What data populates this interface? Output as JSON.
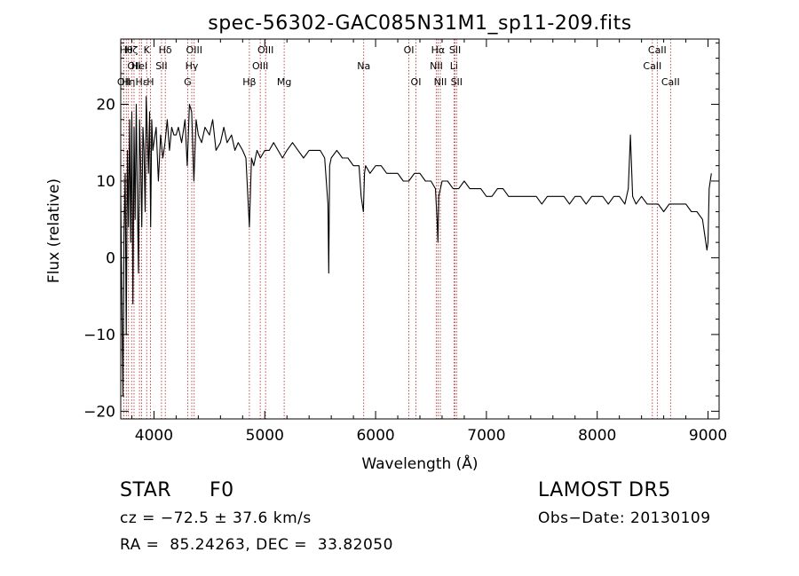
{
  "chart_data": {
    "type": "line",
    "title": "spec-56302-GAC085N31M1_sp11-209.fits",
    "xlabel": "Wavelength (Å)",
    "ylabel": "Flux (relative)",
    "xlim": [
      3700,
      9100
    ],
    "ylim": [
      -21,
      28.5
    ],
    "x_ticks": [
      4000,
      5000,
      6000,
      7000,
      8000,
      9000
    ],
    "x_tick_labels": [
      "4000",
      "5000",
      "6000",
      "7000",
      "8000",
      "9000"
    ],
    "y_ticks": [
      -20,
      -10,
      0,
      10,
      20
    ],
    "y_tick_labels": [
      "−20",
      "−10",
      "0",
      "10",
      "20"
    ],
    "grid": false,
    "series": [
      {
        "color": "#000000",
        "x": [
          3700,
          3710,
          3720,
          3730,
          3740,
          3750,
          3760,
          3770,
          3780,
          3790,
          3800,
          3810,
          3820,
          3830,
          3840,
          3850,
          3860,
          3870,
          3880,
          3890,
          3900,
          3910,
          3920,
          3930,
          3940,
          3950,
          3960,
          3970,
          3980,
          3990,
          4000,
          4020,
          4040,
          4060,
          4080,
          4100,
          4120,
          4140,
          4160,
          4180,
          4200,
          4220,
          4250,
          4280,
          4300,
          4320,
          4340,
          4360,
          4380,
          4400,
          4430,
          4460,
          4500,
          4530,
          4560,
          4600,
          4630,
          4660,
          4700,
          4730,
          4760,
          4800,
          4830,
          4861,
          4880,
          4900,
          4930,
          4960,
          5000,
          5040,
          5080,
          5120,
          5160,
          5200,
          5250,
          5300,
          5350,
          5400,
          5450,
          5500,
          5540,
          5570,
          5577,
          5585,
          5600,
          5650,
          5700,
          5750,
          5800,
          5850,
          5870,
          5890,
          5900,
          5910,
          5950,
          6000,
          6050,
          6100,
          6150,
          6200,
          6250,
          6300,
          6350,
          6400,
          6450,
          6500,
          6540,
          6555,
          6563,
          6570,
          6600,
          6650,
          6700,
          6750,
          6800,
          6850,
          6900,
          6950,
          7000,
          7050,
          7100,
          7150,
          7200,
          7250,
          7300,
          7350,
          7400,
          7450,
          7500,
          7550,
          7600,
          7650,
          7700,
          7750,
          7800,
          7850,
          7900,
          7950,
          8000,
          8050,
          8100,
          8150,
          8200,
          8250,
          8280,
          8300,
          8320,
          8350,
          8400,
          8450,
          8500,
          8550,
          8600,
          8650,
          8700,
          8750,
          8800,
          8850,
          8900,
          8950,
          8970,
          8990,
          9000,
          9010,
          9030
        ],
        "y": [
          8,
          -5,
          -18,
          3,
          11,
          -10,
          14,
          4,
          18,
          2,
          19,
          -6,
          17,
          5,
          20,
          8,
          -2,
          18,
          12,
          4,
          17,
          14,
          6,
          21,
          16,
          11,
          19,
          4,
          18,
          14,
          15,
          17,
          10,
          16,
          13,
          15,
          18,
          14,
          17,
          16,
          16,
          17,
          15,
          18,
          12,
          20,
          19,
          10,
          18,
          16,
          15,
          17,
          16,
          18,
          14,
          15,
          17,
          15,
          16,
          14,
          15,
          14,
          13,
          4,
          13,
          12,
          14,
          13,
          14,
          14,
          15,
          14,
          13,
          14,
          15,
          14,
          13,
          14,
          14,
          14,
          13,
          7,
          -2,
          12,
          13,
          14,
          13,
          13,
          12,
          12,
          8,
          6,
          11,
          12,
          11,
          12,
          12,
          11,
          11,
          11,
          10,
          10,
          11,
          11,
          10,
          10,
          9,
          5,
          2,
          8,
          10,
          10,
          9,
          9,
          10,
          9,
          9,
          9,
          8,
          8,
          9,
          9,
          8,
          8,
          8,
          8,
          8,
          8,
          7,
          8,
          8,
          8,
          8,
          7,
          8,
          8,
          7,
          8,
          8,
          8,
          7,
          8,
          8,
          7,
          9,
          16,
          8,
          7,
          8,
          7,
          7,
          7,
          6,
          7,
          7,
          7,
          7,
          6,
          6,
          5,
          3,
          1,
          2,
          9,
          11
        ]
      }
    ],
    "lines": [
      {
        "x": 3728,
        "label": "OII",
        "row": 2
      },
      {
        "x": 3750,
        "label": "Hθ",
        "row": 0
      },
      {
        "x": 3770,
        "label": "Hη",
        "row": 2
      },
      {
        "x": 3798,
        "label": "Hζ",
        "row": 0
      },
      {
        "x": 3820,
        "label": "OII",
        "row": 1
      },
      {
        "x": 3869,
        "label": "HeI",
        "row": 1
      },
      {
        "x": 3889,
        "label": "Hε",
        "row": 2
      },
      {
        "x": 3934,
        "label": "K",
        "row": 0
      },
      {
        "x": 3968,
        "label": "H",
        "row": 2
      },
      {
        "x": 4068,
        "label": "SII",
        "row": 1
      },
      {
        "x": 4102,
        "label": "Hδ",
        "row": 0
      },
      {
        "x": 4304,
        "label": "G",
        "row": 2
      },
      {
        "x": 4341,
        "label": "Hγ",
        "row": 1
      },
      {
        "x": 4363,
        "label": "OIII",
        "row": 0
      },
      {
        "x": 4861,
        "label": "Hβ",
        "row": 2
      },
      {
        "x": 4959,
        "label": "OIII",
        "row": 1
      },
      {
        "x": 5007,
        "label": "OIII",
        "row": 0
      },
      {
        "x": 5175,
        "label": "Mg",
        "row": 2
      },
      {
        "x": 5893,
        "label": "Na",
        "row": 1
      },
      {
        "x": 6300,
        "label": "OI",
        "row": 0
      },
      {
        "x": 6364,
        "label": "OI",
        "row": 2
      },
      {
        "x": 6548,
        "label": "NII",
        "row": 1
      },
      {
        "x": 6563,
        "label": "Hα",
        "row": 0
      },
      {
        "x": 6584,
        "label": "NII",
        "row": 2
      },
      {
        "x": 6707,
        "label": "Li",
        "row": 1
      },
      {
        "x": 6717,
        "label": "SII",
        "row": 0
      },
      {
        "x": 6731,
        "label": "SII",
        "row": 2
      },
      {
        "x": 8498,
        "label": "CaII",
        "row": 1
      },
      {
        "x": 8542,
        "label": "CaII",
        "row": 0
      },
      {
        "x": 8662,
        "label": "CaII",
        "row": 2
      }
    ]
  },
  "info": {
    "class": "STAR",
    "subclass": "F0",
    "survey": "LAMOST DR5",
    "cz": "cz = −72.5 ± 37.6 km/s",
    "obs_date": "Obs−Date: 20130109",
    "coords": "RA =  85.24263, DEC =  33.82050"
  },
  "colors": {
    "line_marker": "#b22222",
    "spectrum": "#000000"
  }
}
